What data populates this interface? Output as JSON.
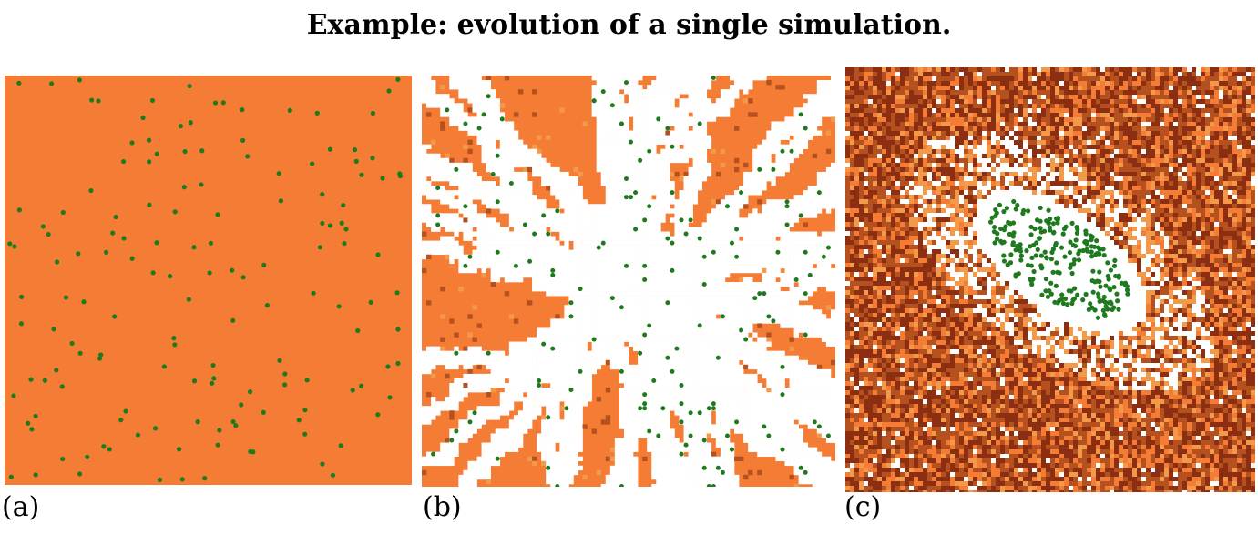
{
  "title": "Example: evolution of a single simulation.",
  "panels": [
    {
      "label": "(a)"
    },
    {
      "label": "(b)"
    },
    {
      "label": "(c)"
    }
  ],
  "colors": {
    "background_orange": "#f47c35",
    "light_orange": "#f39a4a",
    "dark_brown": "#8b2e12",
    "medium_brown": "#b5501f",
    "cleared_white": "#ffffff",
    "agent_green": "#1f7a1f"
  }
}
